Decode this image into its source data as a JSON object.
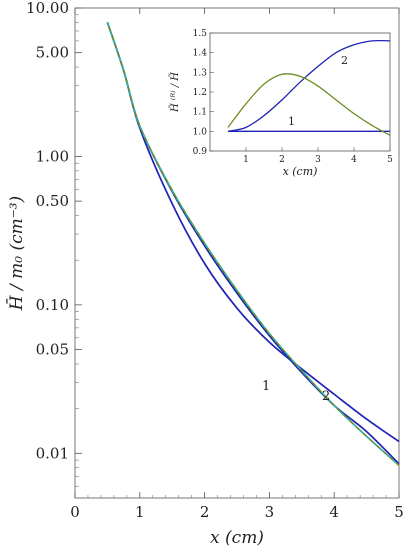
{
  "chart_data": [
    {
      "type": "line",
      "role": "main",
      "title": "",
      "xlabel": "x (cm)",
      "ylabel": "H̄ / m₀ (cm⁻³)",
      "xlim": [
        0,
        5
      ],
      "ylim": [
        0.005,
        10
      ],
      "yscale": "log",
      "grid": false,
      "x_ticks": [
        "0",
        "1",
        "2",
        "3",
        "4",
        "5"
      ],
      "y_ticks": [
        "10.00",
        "5.00",
        "1.00",
        "0.50",
        "0.10",
        "0.05",
        "0.01"
      ],
      "x": [
        0.5,
        0.75,
        1.0,
        1.5,
        2.0,
        2.5,
        3.0,
        3.5,
        4.0,
        4.5,
        5.0
      ],
      "series": [
        {
          "name": "1",
          "color": "#1f23b5",
          "values": [
            8.0,
            3.8,
            1.6,
            0.58,
            0.25,
            0.12,
            0.062,
            0.035,
            0.021,
            0.014,
            0.0085
          ]
        },
        {
          "name": "2",
          "color": "#1f23b5",
          "values": [
            8.0,
            3.8,
            1.55,
            0.48,
            0.19,
            0.095,
            0.056,
            0.037,
            0.025,
            0.017,
            0.012
          ]
        },
        {
          "color": "#6b8e23",
          "dashed": false,
          "values": [
            8.0,
            3.8,
            1.6,
            0.59,
            0.26,
            0.125,
            0.064,
            0.036,
            0.021,
            0.013,
            0.0083
          ]
        },
        {
          "color": "#22b8b8",
          "dashed": true,
          "values": [
            8.0,
            3.8,
            1.6,
            0.59,
            0.26,
            0.125,
            0.064,
            0.036,
            0.021,
            0.013,
            0.0083
          ]
        }
      ],
      "annotations": [
        "1",
        "2"
      ]
    },
    {
      "type": "line",
      "role": "inset",
      "title": "",
      "xlabel": "x (cm)",
      "ylabel": "H̃ ⁽ᴿ⁾ / H̃",
      "xlim": [
        0,
        5
      ],
      "ylim": [
        0.9,
        1.5
      ],
      "grid": false,
      "x_ticks": [
        "1",
        "2",
        "3",
        "4",
        "5"
      ],
      "y_ticks": [
        "0.9",
        "1.0",
        "1.1",
        "1.2",
        "1.3",
        "1.4",
        "1.5"
      ],
      "x": [
        0.5,
        1.0,
        1.5,
        2.0,
        2.5,
        3.0,
        3.5,
        4.0,
        4.5,
        5.0
      ],
      "series": [
        {
          "name": "1",
          "color": "#1f23b5",
          "values": [
            1.0,
            1.0,
            1.0,
            1.0,
            1.0,
            1.0,
            1.0,
            1.0,
            1.0,
            1.0
          ]
        },
        {
          "name": "2",
          "color": "#1f23b5",
          "values": [
            1.0,
            1.02,
            1.08,
            1.16,
            1.25,
            1.33,
            1.4,
            1.44,
            1.46,
            1.46
          ]
        },
        {
          "color": "#6b8e23",
          "values": [
            1.02,
            1.14,
            1.24,
            1.29,
            1.28,
            1.23,
            1.16,
            1.09,
            1.03,
            0.98
          ]
        }
      ],
      "annotations": [
        "1",
        "2"
      ]
    }
  ]
}
